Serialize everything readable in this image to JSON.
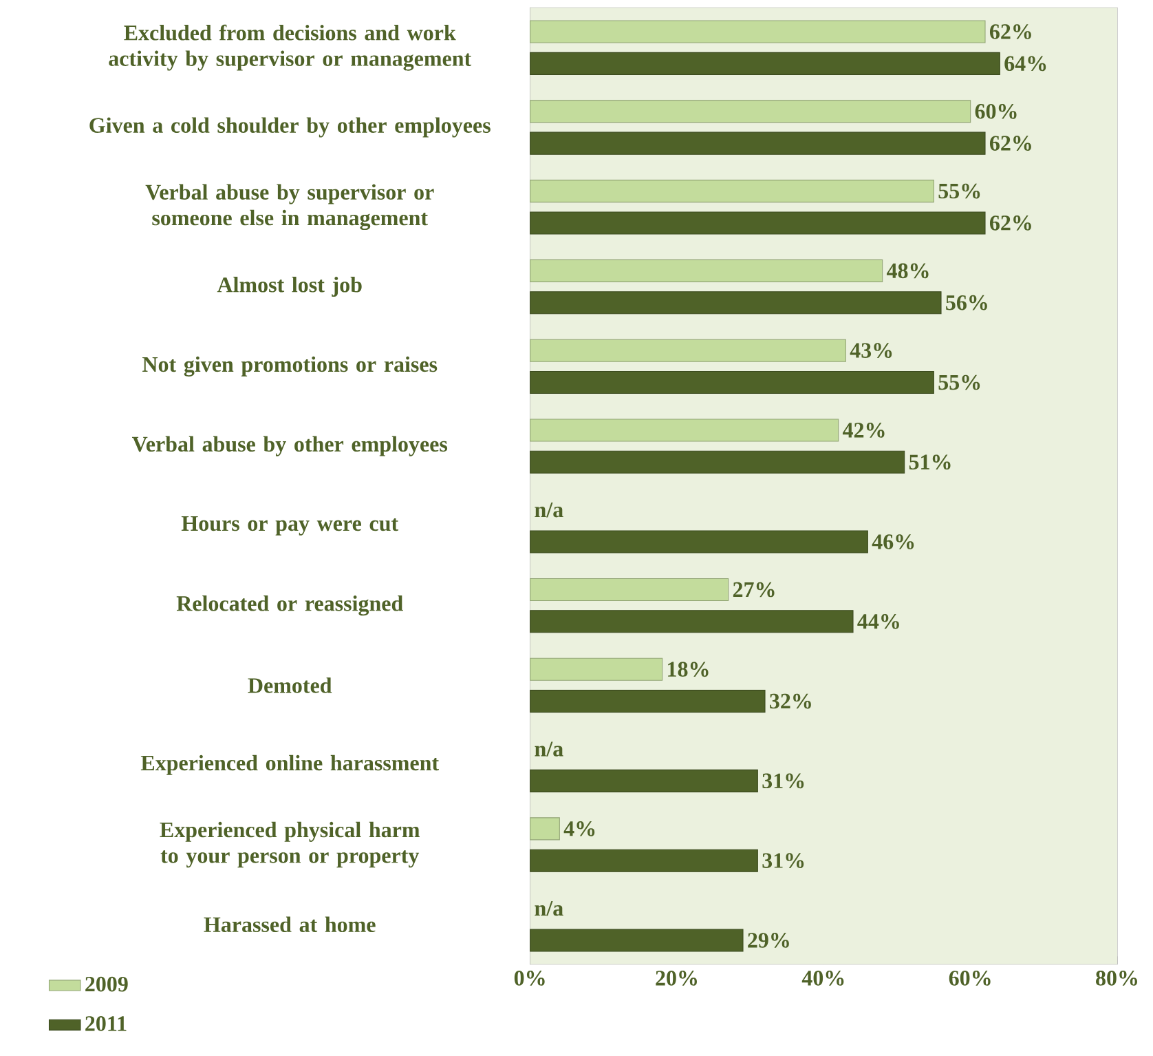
{
  "chart_data": {
    "type": "bar",
    "orientation": "horizontal",
    "legend": "bottom left",
    "categories": [
      "Excluded from decisions and work activity by supervisor or management",
      "Given a cold shoulder by other employees",
      "Verbal abuse by supervisor or someone else in management",
      "Almost lost job",
      "Not given promotions or raises",
      "Verbal abuse by other employees",
      "Hours or pay were cut",
      "Relocated or reassigned",
      "Demoted",
      "Experienced online harassment",
      "Experienced physical harm to your person or property",
      "Harassed at home"
    ],
    "series": [
      {
        "name": "2009",
        "color": "#c3dc9c",
        "values": [
          62,
          60,
          55,
          48,
          43,
          42,
          null,
          27,
          18,
          null,
          4,
          null
        ],
        "value_labels": [
          "62%",
          "60%",
          "55%",
          "48%",
          "43%",
          "42%",
          "n/a",
          "27%",
          "18%",
          "n/a",
          "4%",
          "n/a"
        ]
      },
      {
        "name": "2011",
        "color": "#4f6228",
        "values": [
          64,
          62,
          62,
          56,
          55,
          51,
          46,
          44,
          32,
          31,
          31,
          29
        ],
        "value_labels": [
          "64%",
          "62%",
          "62%",
          "56%",
          "55%",
          "51%",
          "46%",
          "44%",
          "32%",
          "31%",
          "31%",
          "29%"
        ]
      }
    ],
    "xlim": [
      0,
      80
    ],
    "xticks": [
      {
        "value": 0,
        "label": "0%"
      },
      {
        "value": 20,
        "label": "20%"
      },
      {
        "value": 40,
        "label": "40%"
      },
      {
        "value": 60,
        "label": "60%"
      },
      {
        "value": 80,
        "label": "80%"
      }
    ]
  }
}
